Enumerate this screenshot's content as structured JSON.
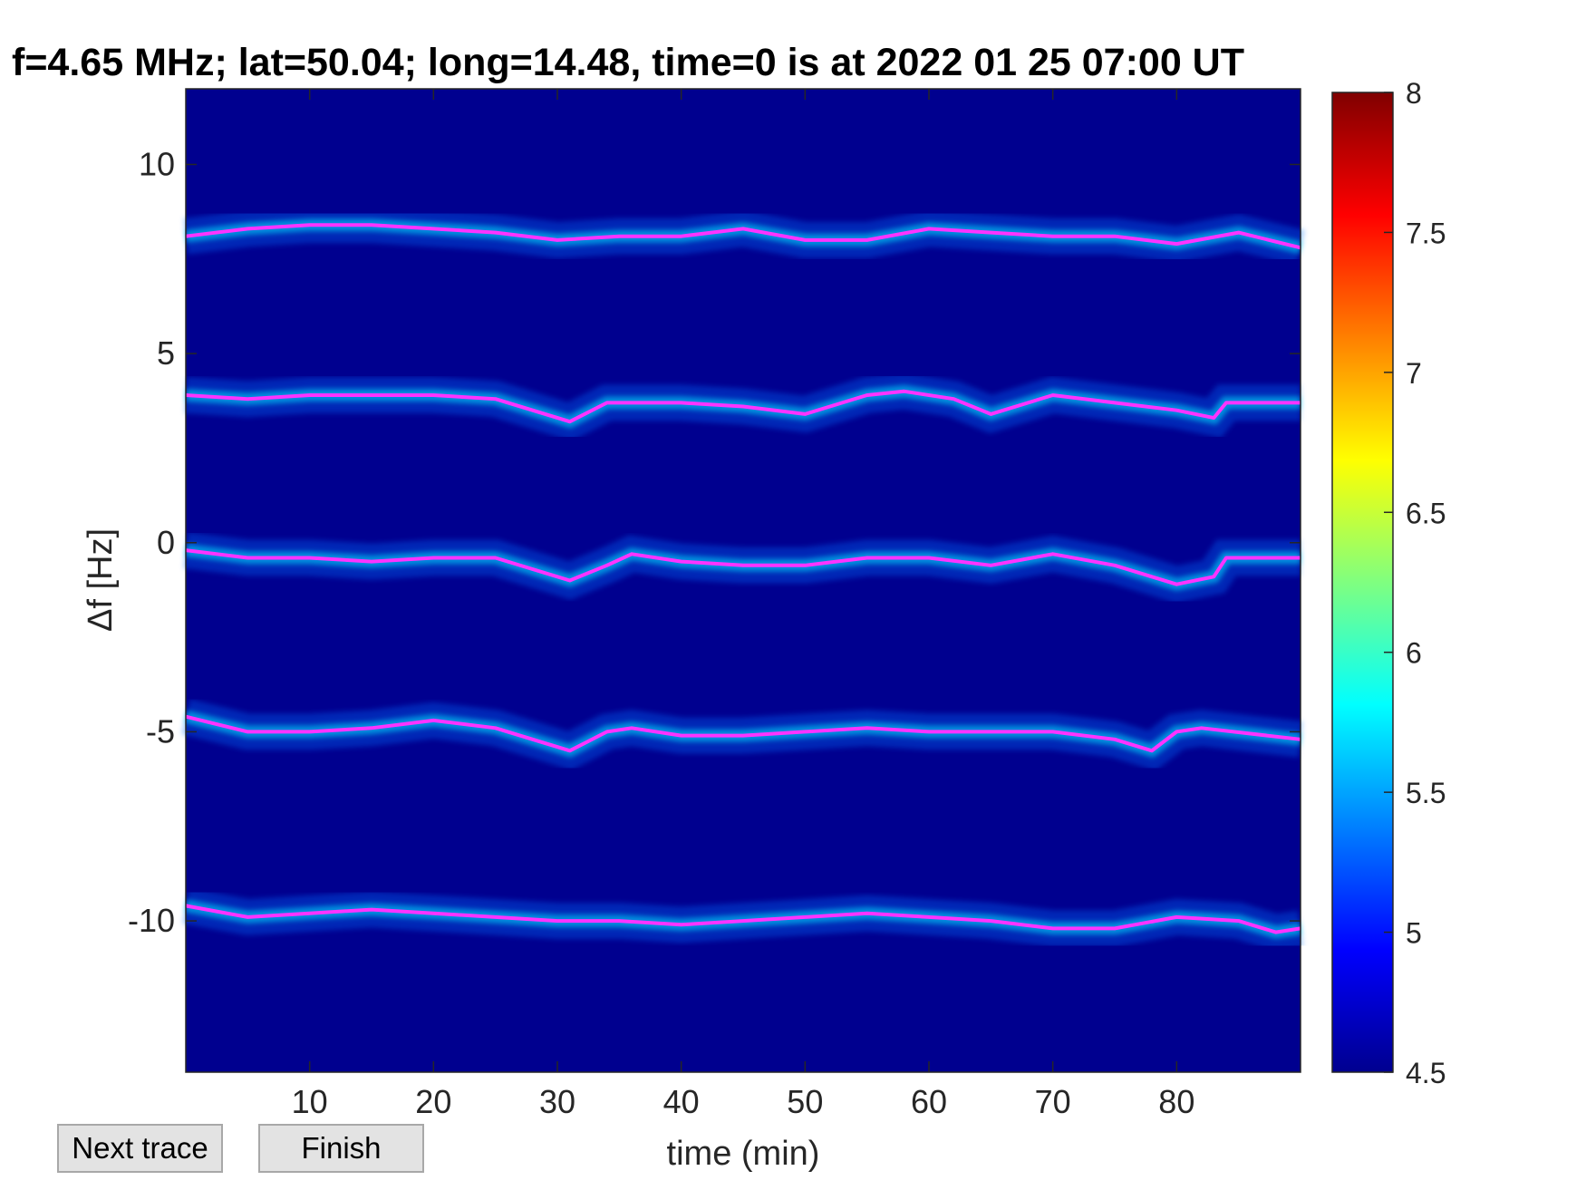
{
  "chart_data": {
    "type": "heatmap",
    "title": "f=4.65 MHz;  lat=50.04; long=14.48, time=0 is at 2022 01 25 07:00 UT",
    "xlabel": "time (min)",
    "ylabel": "Δf [Hz]",
    "xlim": [
      0,
      90
    ],
    "ylim": [
      -14,
      12
    ],
    "xticks": [
      10,
      20,
      30,
      40,
      50,
      60,
      70,
      80
    ],
    "yticks": [
      10,
      5,
      0,
      -5,
      -10
    ],
    "colorbar": {
      "min": 4.5,
      "max": 8,
      "ticks": [
        8,
        7.5,
        7,
        6.5,
        6,
        5.5,
        5,
        4.5
      ],
      "colormap": "jet"
    },
    "background_color": "#00008f",
    "trace_color": "#ff33ff",
    "series": [
      {
        "x": [
          0,
          5,
          10,
          15,
          20,
          25,
          30,
          35,
          40,
          45,
          50,
          55,
          60,
          65,
          70,
          75,
          80,
          85,
          90
        ],
        "y": [
          8.1,
          8.3,
          8.4,
          8.4,
          8.3,
          8.2,
          8.0,
          8.1,
          8.1,
          8.3,
          8.0,
          8.0,
          8.3,
          8.2,
          8.1,
          8.1,
          7.9,
          8.2,
          7.8
        ]
      },
      {
        "x": [
          0,
          5,
          10,
          15,
          20,
          25,
          28,
          31,
          34,
          40,
          45,
          50,
          55,
          58,
          62,
          65,
          70,
          75,
          80,
          83,
          84,
          90
        ],
        "y": [
          3.9,
          3.8,
          3.9,
          3.9,
          3.9,
          3.8,
          3.5,
          3.2,
          3.7,
          3.7,
          3.6,
          3.4,
          3.9,
          4.0,
          3.8,
          3.4,
          3.9,
          3.7,
          3.5,
          3.3,
          3.7,
          3.7
        ]
      },
      {
        "x": [
          0,
          5,
          10,
          15,
          20,
          25,
          28,
          31,
          34,
          36,
          40,
          45,
          50,
          55,
          60,
          65,
          70,
          75,
          80,
          83,
          84,
          90
        ],
        "y": [
          -0.2,
          -0.4,
          -0.4,
          -0.5,
          -0.4,
          -0.4,
          -0.7,
          -1.0,
          -0.6,
          -0.3,
          -0.5,
          -0.6,
          -0.6,
          -0.4,
          -0.4,
          -0.6,
          -0.3,
          -0.6,
          -1.1,
          -0.9,
          -0.4,
          -0.4
        ]
      },
      {
        "x": [
          0,
          5,
          10,
          15,
          20,
          25,
          28,
          31,
          34,
          36,
          40,
          45,
          50,
          55,
          60,
          65,
          70,
          75,
          78,
          80,
          82,
          90
        ],
        "y": [
          -4.6,
          -5.0,
          -5.0,
          -4.9,
          -4.7,
          -4.9,
          -5.2,
          -5.5,
          -5.0,
          -4.9,
          -5.1,
          -5.1,
          -5.0,
          -4.9,
          -5.0,
          -5.0,
          -5.0,
          -5.2,
          -5.5,
          -5.0,
          -4.9,
          -5.2
        ]
      },
      {
        "x": [
          0,
          5,
          10,
          15,
          20,
          25,
          30,
          35,
          40,
          45,
          50,
          55,
          60,
          65,
          70,
          75,
          80,
          85,
          88,
          90
        ],
        "y": [
          -9.6,
          -9.9,
          -9.8,
          -9.7,
          -9.8,
          -9.9,
          -10.0,
          -10.0,
          -10.1,
          -10.0,
          -9.9,
          -9.8,
          -9.9,
          -10.0,
          -10.2,
          -10.2,
          -9.9,
          -10.0,
          -10.3,
          -10.2
        ]
      }
    ]
  },
  "buttons": {
    "next_label": "Next trace",
    "finish_label": "Finish"
  }
}
